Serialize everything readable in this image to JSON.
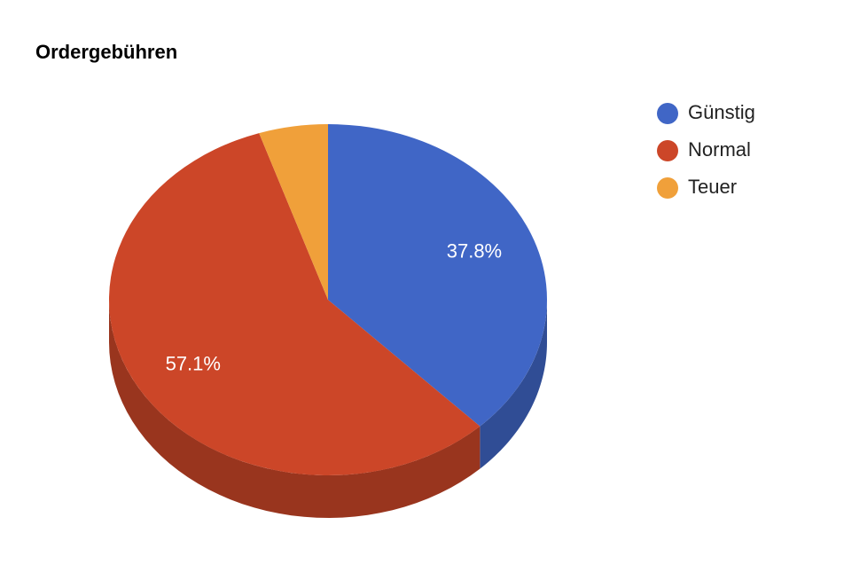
{
  "chart_data": {
    "type": "pie",
    "title": "Ordergebühren",
    "categories": [
      "Günstig",
      "Normal",
      "Teuer"
    ],
    "values": [
      37.8,
      57.1,
      5.1
    ],
    "value_labels": [
      "37.8%",
      "57.1%",
      null
    ],
    "colors": [
      "#4066c6",
      "#cc4628",
      "#f0a03a"
    ],
    "legend": "right"
  }
}
